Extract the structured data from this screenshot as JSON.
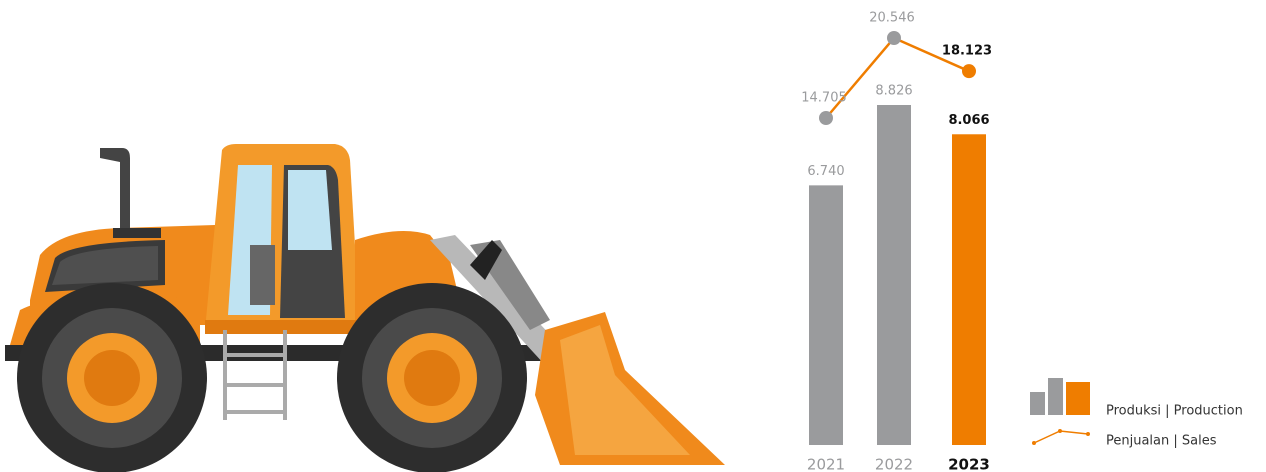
{
  "chart_data": {
    "type": "bar",
    "categories": [
      "2021",
      "2022",
      "2023"
    ],
    "series": [
      {
        "name": "Produksi | Production",
        "type": "bar",
        "colors": [
          "#9a9b9d",
          "#9a9b9d",
          "#ef7d00"
        ],
        "values": [
          6740,
          8826,
          8066
        ],
        "value_labels": [
          "6.740",
          "8.826",
          "8.066"
        ]
      },
      {
        "name": "Penjualan | Sales",
        "type": "line",
        "color": "#ef7d00",
        "point_colors": [
          "#9a9b9d",
          "#9a9b9d",
          "#ef7d00"
        ],
        "values": [
          14705,
          20546,
          18123
        ],
        "value_labels": [
          "14.705",
          "20.546",
          "18.123"
        ]
      }
    ]
  }
}
